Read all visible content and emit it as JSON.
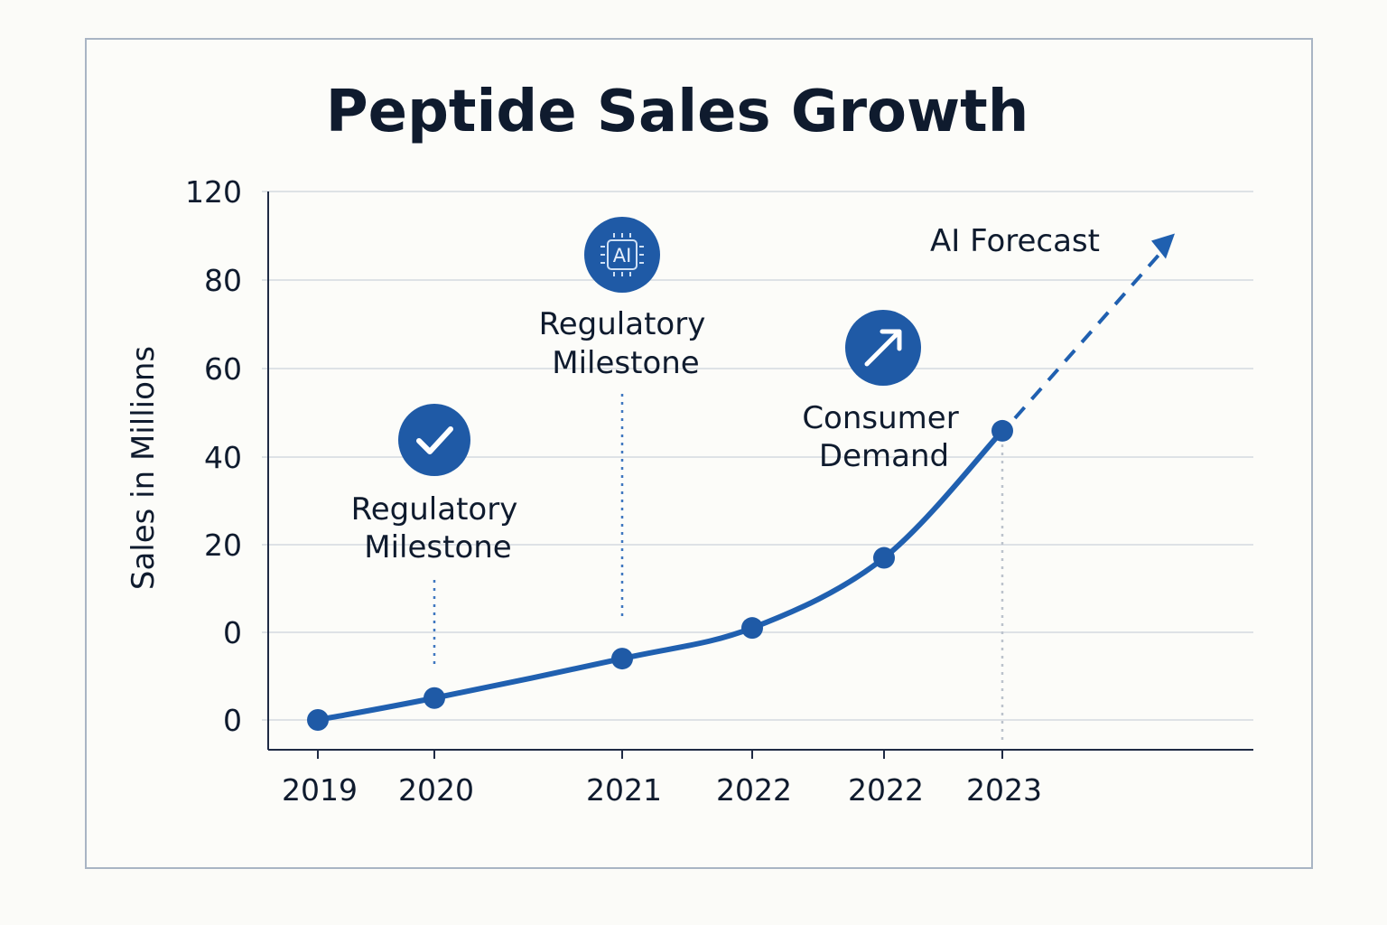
{
  "colors": {
    "line": "#2060b0",
    "marker": "#1f5aa6",
    "icon_bg": "#1f5aa6",
    "text": "#0f1b2e",
    "grid": "#d3d9e0",
    "axis": "#1f2a44",
    "frame": "#a9b5c4"
  },
  "chart_data": {
    "type": "line",
    "title": "Peptide Sales Growth",
    "ylabel": "Sales in Millions",
    "xlabel": "",
    "y_tick_labels": [
      "120",
      "80",
      "60",
      "40",
      "20",
      "0",
      "0"
    ],
    "x_tick_labels": [
      "2019",
      "2020",
      "2021",
      "2022",
      "2022",
      "2023"
    ],
    "grid": true,
    "series": [
      {
        "values": [
          -20,
          -15,
          -6,
          1,
          17,
          46
        ]
      }
    ],
    "forecast": {
      "label": "AI Forecast",
      "end_value": 90,
      "style": "dashed-arrow"
    },
    "annotations": [
      {
        "label_line1": "Regulatory",
        "label_line2": "Milestone",
        "icon": "checkmark-icon",
        "anchor_index": 1
      },
      {
        "label_line1": "Regulatory",
        "label_line2": "Milestone",
        "icon": "ai-chip-icon",
        "icon_text": "AI",
        "anchor_index": 2
      },
      {
        "label_line1": "Consumer",
        "label_line2": "Demand",
        "icon": "trend-arrow-icon",
        "anchor_index": 4
      }
    ]
  }
}
